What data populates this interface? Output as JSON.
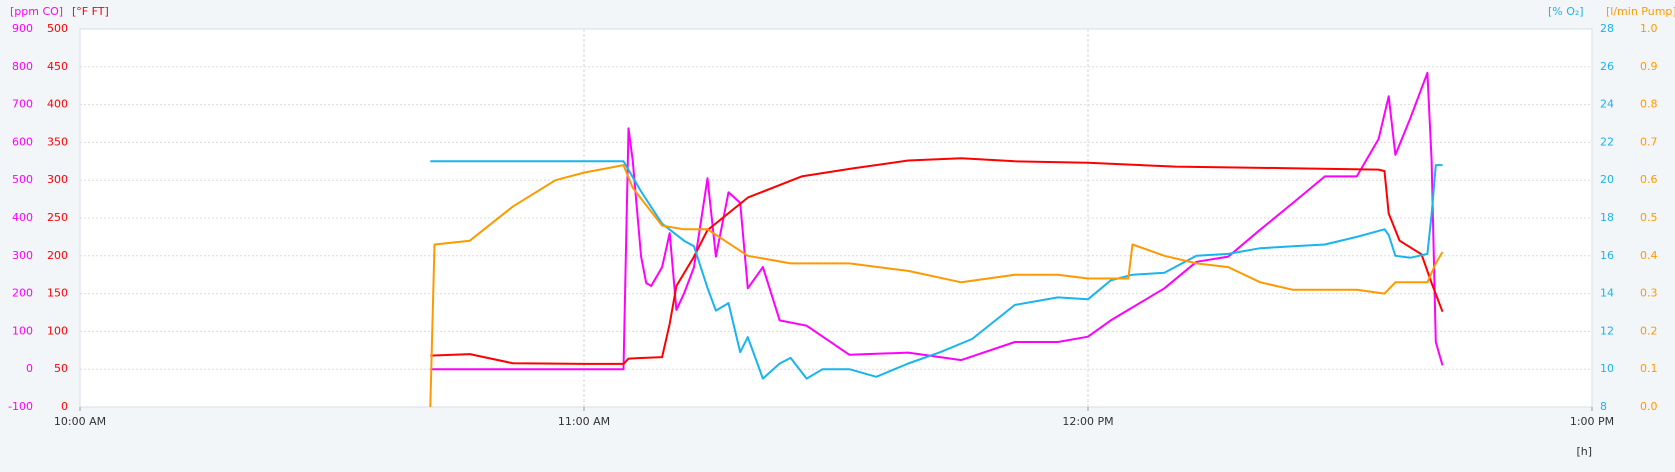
{
  "chart_data": {
    "type": "line",
    "x_label": "[h]",
    "xlim": [
      600,
      780
    ],
    "xticks": [
      {
        "value": 600,
        "label": "10:00 AM"
      },
      {
        "value": 660,
        "label": "11:00 AM"
      },
      {
        "value": 720,
        "label": "12:00 PM"
      },
      {
        "value": 780,
        "label": "1:00 PM"
      }
    ],
    "grid": true,
    "axes": [
      {
        "label": "[ppm CO]",
        "color": "#ff00ff",
        "side": "left",
        "lim": [
          -100,
          900
        ],
        "ticks": [
          -100,
          0,
          100,
          200,
          300,
          400,
          500,
          600,
          700,
          800,
          900
        ]
      },
      {
        "label": "[°F FT]",
        "color": "#ff0000",
        "side": "left",
        "lim": [
          0,
          500
        ],
        "ticks": [
          0,
          50,
          100,
          150,
          200,
          250,
          300,
          350,
          400,
          450,
          500
        ]
      },
      {
        "label": "[% O₂]",
        "color": "#19b4ee",
        "side": "right",
        "lim": [
          8,
          28
        ],
        "ticks": [
          8,
          10,
          12,
          14,
          16,
          18,
          20,
          22,
          24,
          26,
          28
        ]
      },
      {
        "label": "[l/min Pump]",
        "color": "#ff9900",
        "side": "right",
        "lim": [
          0,
          1
        ],
        "ticks": [
          {
            "value": 0,
            "label": "0.0"
          },
          0.1,
          0.2,
          0.3,
          0.4,
          0.5,
          0.6,
          0.7,
          0.8,
          0.9,
          {
            "value": 1,
            "label": "1.0"
          }
        ]
      }
    ],
    "series": [
      {
        "axis": 0,
        "color": "#ff00ff",
        "x": [
          641.7,
          664.7,
          665.3,
          665.8,
          666.8,
          667.4,
          668.0,
          669.3,
          670.2,
          671.0,
          671.9,
          673.1,
          674.7,
          675.7,
          677.2,
          678.6,
          679.5,
          681.3,
          683.3,
          686.5,
          691.6,
          698.6,
          704.9,
          711.3,
          716.4,
          720.0,
          722.7,
          724.8,
          729.1,
          732.9,
          736.7,
          740.5,
          744.4,
          748.2,
          752.0,
          754.6,
          755.8,
          756.6,
          758.4,
          760.4,
          760.9,
          761.4,
          762.2
        ],
        "values": [
          0,
          0,
          637,
          553,
          298,
          228,
          220,
          270,
          360,
          157,
          200,
          270,
          505,
          298,
          468,
          440,
          214,
          270,
          129,
          115,
          38,
          44,
          24,
          72,
          72,
          86,
          129,
          157,
          214,
          284,
          298,
          369,
          440,
          510,
          510,
          609,
          722,
          567,
          666,
          784,
          553,
          72,
          10
        ]
      },
      {
        "axis": 1,
        "color": "#ff0000",
        "x": [
          641.7,
          646.4,
          651.5,
          660.0,
          664.7,
          665.3,
          669.3,
          670.2,
          671.0,
          673.1,
          674.7,
          679.5,
          685.9,
          692.2,
          698.6,
          704.9,
          711.3,
          720.0,
          730.4,
          743.1,
          754.6,
          755.3,
          755.8,
          757.1,
          759.7,
          760.9,
          762.2
        ],
        "values": [
          68,
          70,
          58,
          57,
          57,
          64,
          66,
          110,
          160,
          199,
          234,
          277,
          305,
          316,
          326,
          329,
          325,
          323,
          318,
          316,
          314,
          312,
          256,
          220,
          202,
          164,
          126
        ]
      },
      {
        "axis": 2,
        "color": "#19b4ee",
        "x": [
          641.7,
          646.4,
          664.7,
          666.8,
          669.3,
          671.9,
          673.1,
          674.7,
          675.7,
          677.2,
          678.6,
          679.5,
          681.3,
          683.3,
          684.6,
          686.5,
          688.4,
          691.6,
          694.8,
          698.6,
          702.4,
          706.2,
          711.3,
          716.4,
          720.0,
          722.7,
          725.3,
          729.1,
          732.9,
          736.7,
          740.5,
          744.4,
          748.2,
          752.0,
          755.3,
          755.8,
          756.6,
          758.4,
          760.4,
          760.9,
          761.4,
          762.2
        ],
        "values": [
          21.0,
          21.0,
          21.0,
          19.4,
          17.7,
          16.8,
          16.5,
          14.3,
          13.1,
          13.5,
          10.9,
          11.7,
          9.5,
          10.3,
          10.6,
          9.5,
          10.0,
          10.0,
          9.6,
          10.3,
          10.9,
          11.6,
          13.4,
          13.8,
          13.7,
          14.7,
          15.0,
          15.1,
          16.0,
          16.1,
          16.4,
          16.5,
          16.6,
          17.0,
          17.4,
          17.1,
          16.0,
          15.9,
          16.1,
          18.2,
          20.8,
          20.8
        ]
      },
      {
        "axis": 3,
        "color": "#ff9900",
        "x": [
          641.7,
          642.2,
          646.4,
          651.5,
          656.6,
          660.0,
          664.7,
          665.8,
          669.3,
          671.9,
          674.7,
          679.5,
          684.6,
          691.6,
          698.6,
          704.9,
          711.3,
          716.4,
          720.0,
          724.8,
          725.3,
          729.1,
          732.9,
          736.7,
          740.5,
          744.4,
          752.0,
          755.3,
          756.6,
          760.4,
          761.4,
          762.2
        ],
        "values": [
          0,
          0.43,
          0.44,
          0.53,
          0.6,
          0.62,
          0.64,
          0.58,
          0.48,
          0.47,
          0.47,
          0.4,
          0.38,
          0.38,
          0.36,
          0.33,
          0.35,
          0.35,
          0.34,
          0.34,
          0.43,
          0.4,
          0.38,
          0.37,
          0.33,
          0.31,
          0.31,
          0.3,
          0.33,
          0.33,
          0.38,
          0.41
        ]
      }
    ]
  }
}
